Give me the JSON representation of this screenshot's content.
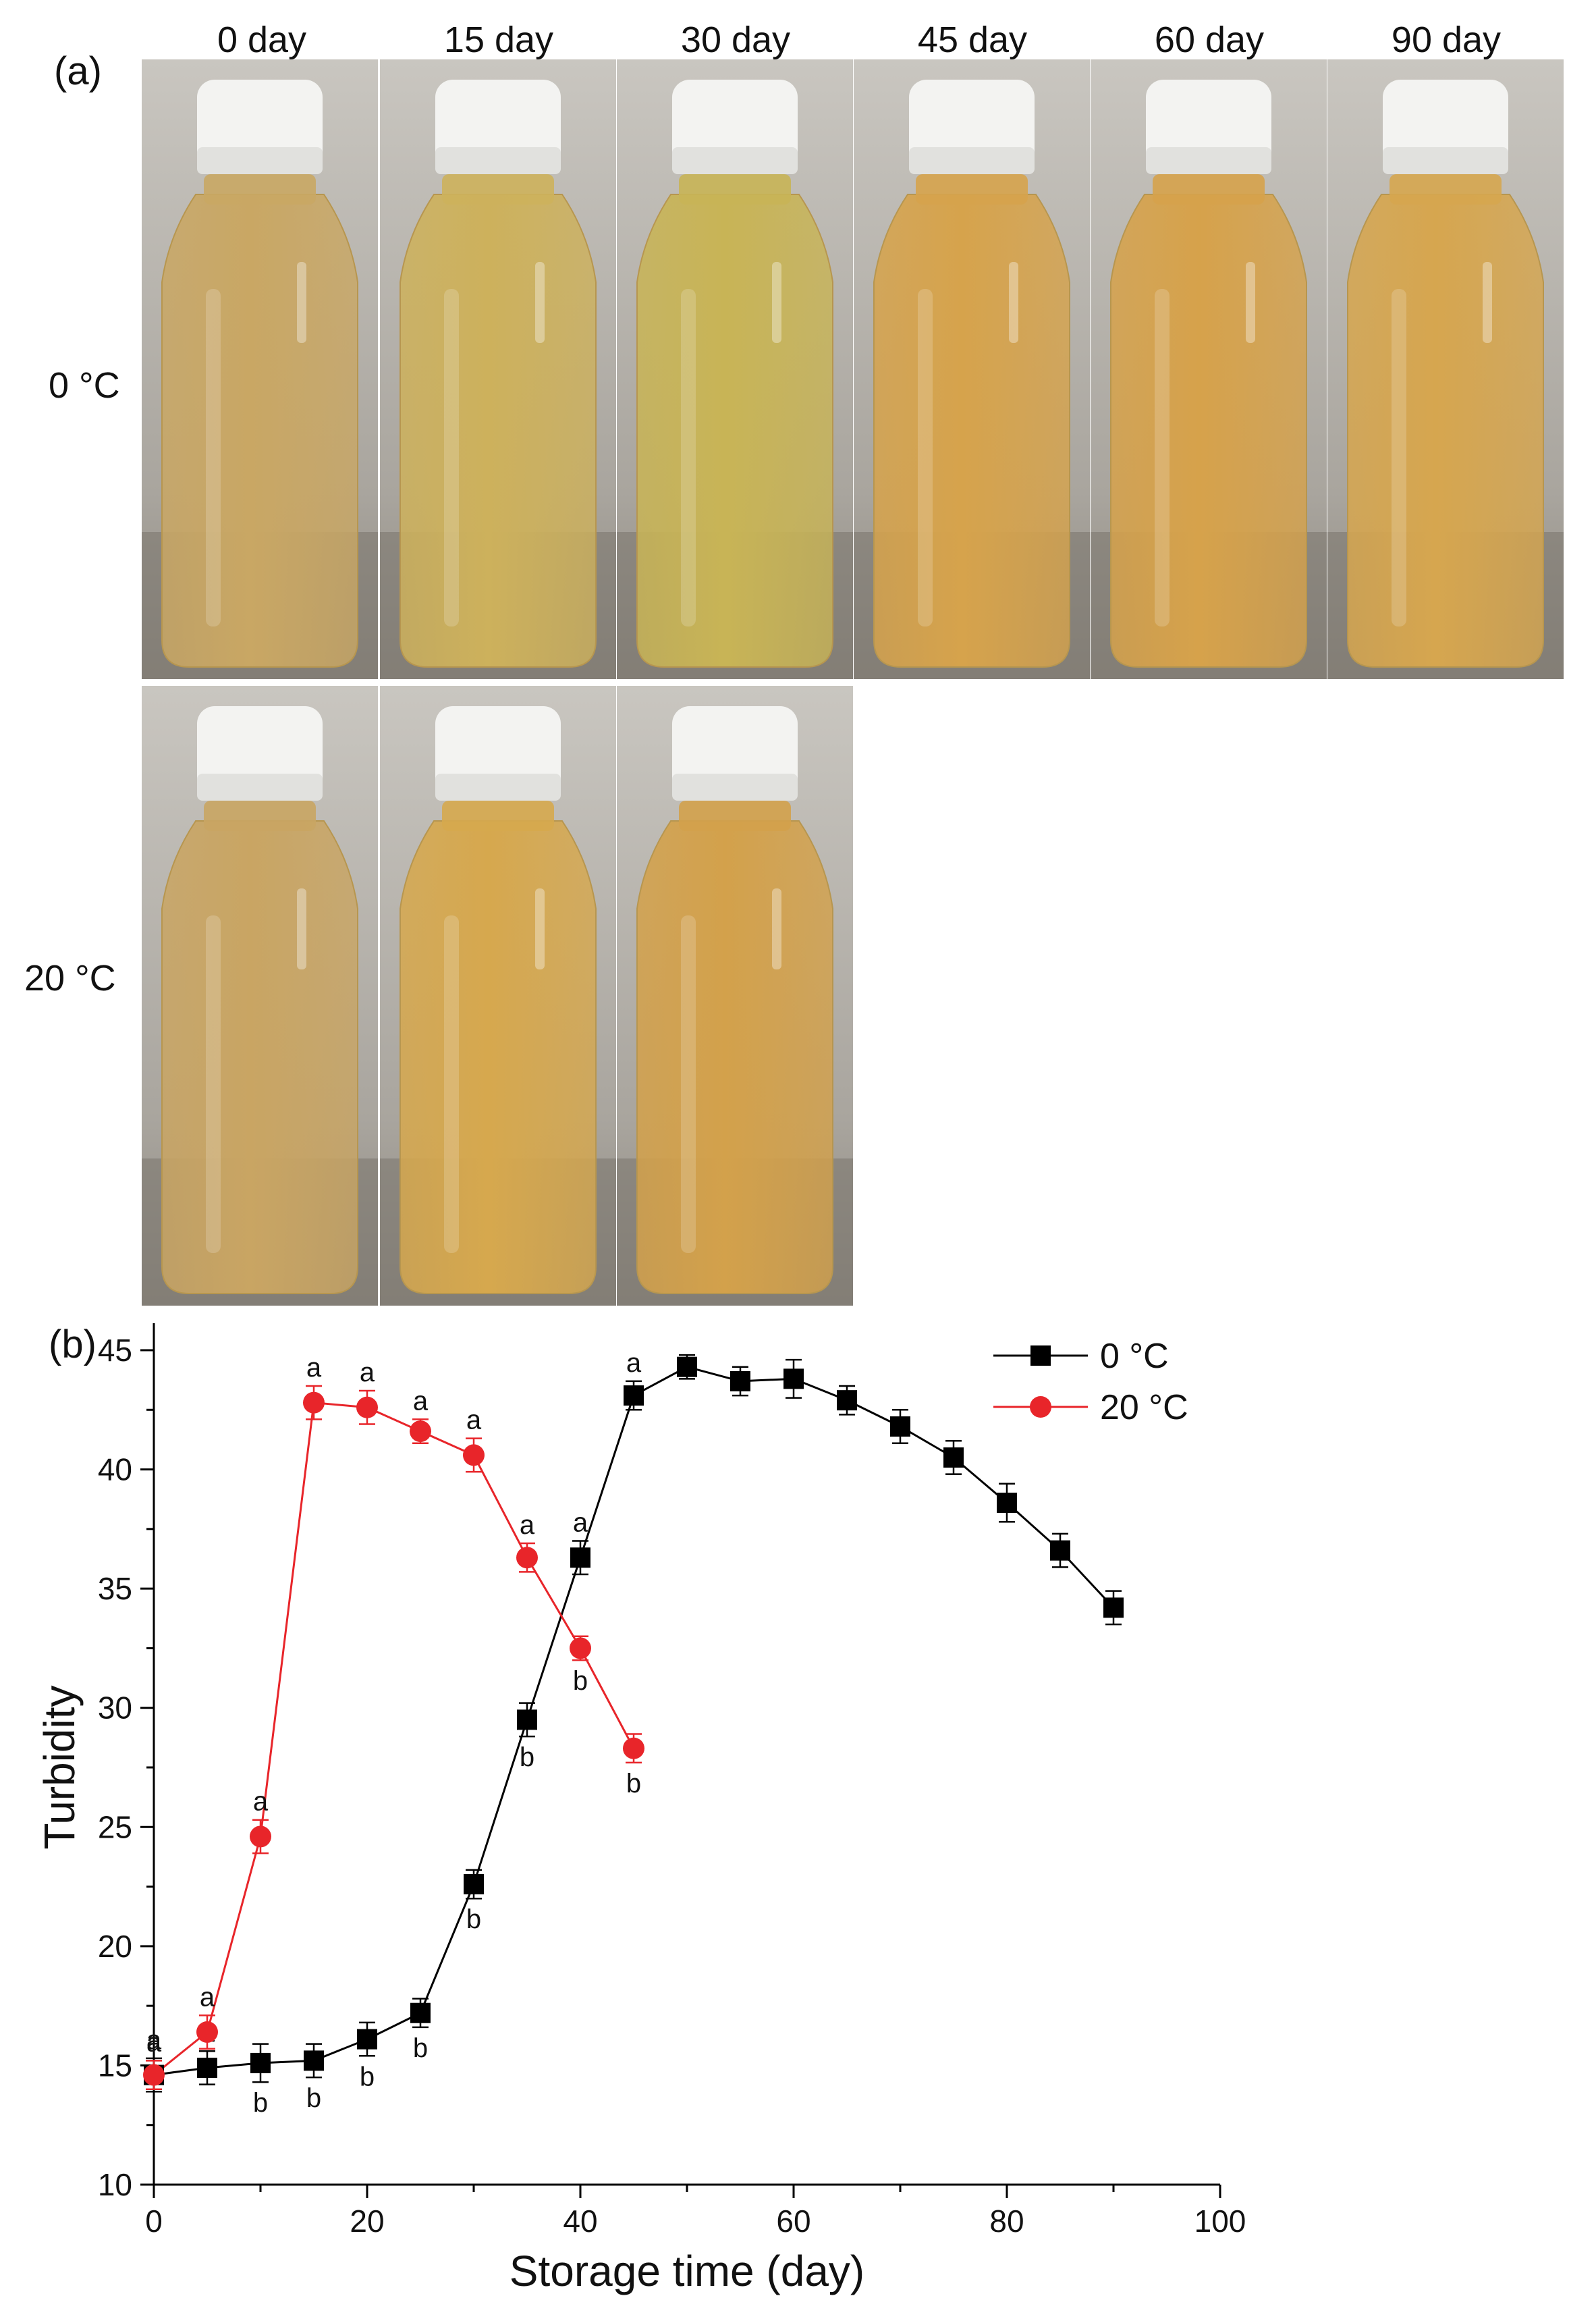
{
  "panel_a": {
    "label": "(a)",
    "column_headers": [
      "0 day",
      "15 day",
      "30 day",
      "45 day",
      "60 day",
      "90 day"
    ],
    "row_labels": [
      "0 °C",
      "20 °C"
    ],
    "photos": [
      {
        "row": 0,
        "col": 0,
        "tint": "#c9a764"
      },
      {
        "row": 0,
        "col": 1,
        "tint": "#cdb15c"
      },
      {
        "row": 0,
        "col": 2,
        "tint": "#c8b456"
      },
      {
        "row": 0,
        "col": 3,
        "tint": "#d6a34c"
      },
      {
        "row": 0,
        "col": 4,
        "tint": "#d6a24b"
      },
      {
        "row": 0,
        "col": 5,
        "tint": "#d6a64f"
      },
      {
        "row": 1,
        "col": 0,
        "tint": "#c9a563"
      },
      {
        "row": 1,
        "col": 1,
        "tint": "#d6a84e"
      },
      {
        "row": 1,
        "col": 2,
        "tint": "#d3a14b"
      }
    ]
  },
  "panel_b": {
    "label": "(b)"
  },
  "chart_data": {
    "type": "line",
    "xlabel": "Storage time (day)",
    "ylabel": "Turbidity",
    "xlim": [
      0,
      100
    ],
    "ylim": [
      10,
      45
    ],
    "xticks": [
      0,
      20,
      40,
      60,
      80,
      100
    ],
    "yticks": [
      10,
      15,
      20,
      25,
      30,
      35,
      40,
      45
    ],
    "legend_position": "top-right",
    "series": [
      {
        "name": "0 °C",
        "color": "#000000",
        "marker": "square",
        "x": [
          0,
          5,
          10,
          15,
          20,
          25,
          30,
          35,
          40,
          45,
          50,
          55,
          60,
          65,
          70,
          75,
          80,
          85,
          90
        ],
        "y": [
          14.6,
          14.9,
          15.1,
          15.2,
          16.1,
          17.2,
          22.6,
          29.5,
          36.3,
          43.1,
          44.3,
          43.7,
          43.8,
          42.9,
          41.8,
          40.5,
          38.6,
          36.6,
          34.2
        ],
        "err": [
          0.7,
          0.7,
          0.8,
          0.7,
          0.7,
          0.6,
          0.6,
          0.7,
          0.7,
          0.6,
          0.5,
          0.6,
          0.8,
          0.6,
          0.7,
          0.7,
          0.8,
          0.7,
          0.7
        ],
        "letters": [
          "a",
          "a",
          "b",
          "b",
          "b",
          "b",
          "b",
          "b",
          "a",
          "a",
          "",
          "",
          "",
          "",
          "",
          "",
          "",
          "",
          ""
        ]
      },
      {
        "name": "20 °C",
        "color": "#e8252a",
        "marker": "circle",
        "x": [
          0,
          5,
          10,
          15,
          20,
          25,
          30,
          35,
          40,
          45
        ],
        "y": [
          14.6,
          16.4,
          24.6,
          42.8,
          42.6,
          41.6,
          40.6,
          36.3,
          32.5,
          28.3
        ],
        "err": [
          0.6,
          0.7,
          0.7,
          0.7,
          0.7,
          0.5,
          0.7,
          0.6,
          0.5,
          0.6
        ],
        "letters": [
          "a",
          "a",
          "a",
          "a",
          "a",
          "a",
          "a",
          "a",
          "b",
          "b"
        ]
      }
    ]
  }
}
